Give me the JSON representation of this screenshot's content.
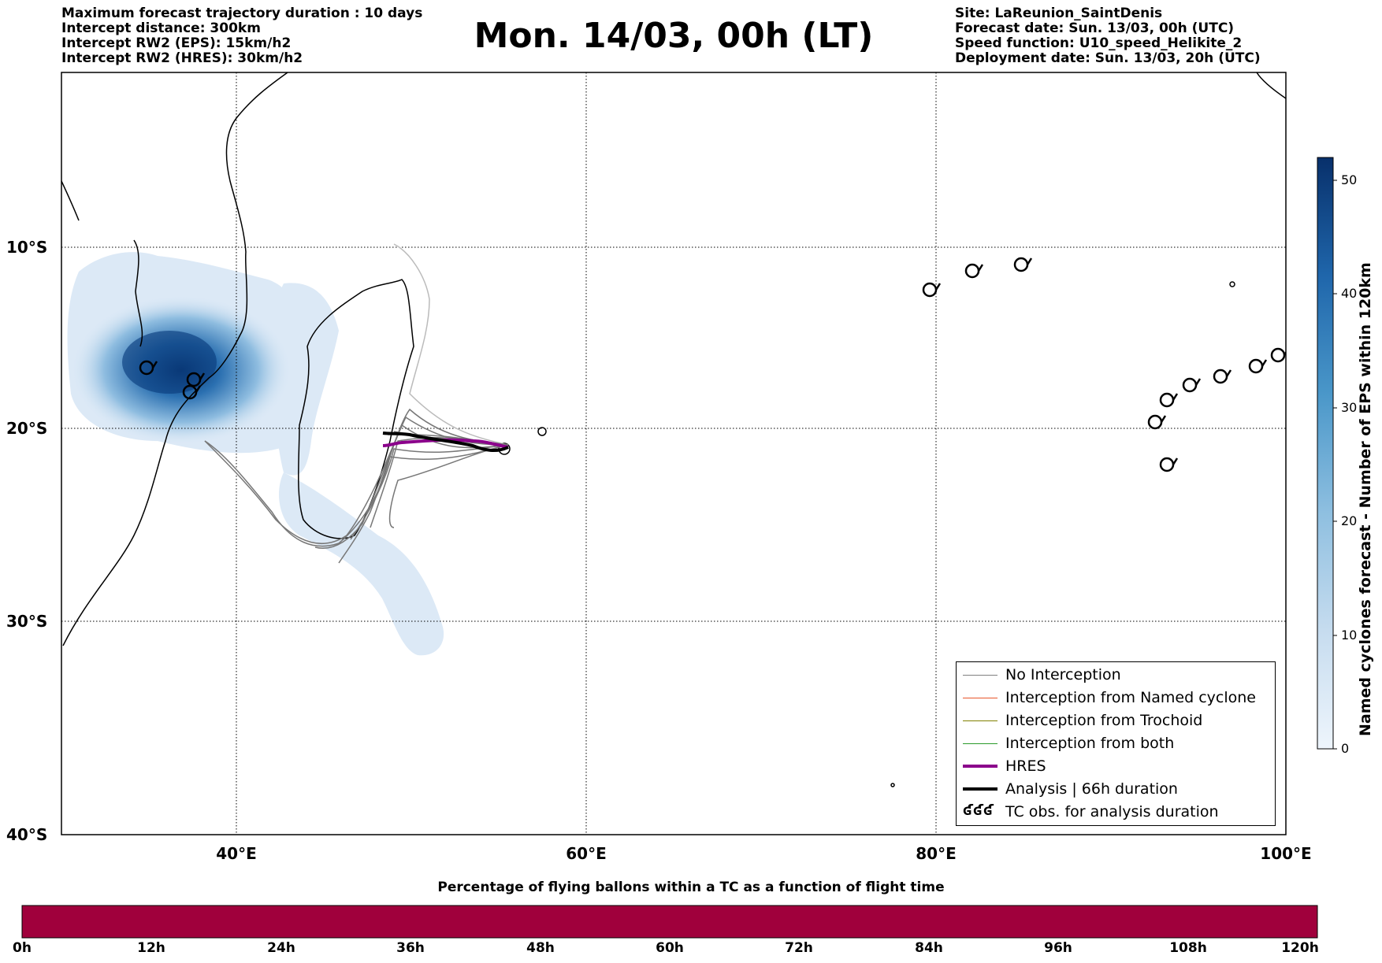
{
  "header_left": [
    "Maximum forecast trajectory duration : 10 days",
    "Intercept distance: 300km",
    "Intercept RW2 (EPS):  15km/h2",
    "Intercept RW2 (HRES): 30km/h2"
  ],
  "title": "Mon. 14/03, 00h (LT)",
  "header_right": [
    "Site: LaReunion_SaintDenis",
    "Forecast date: Sun. 13/03, 00h (UTC)",
    "Speed function: U10_speed_Helikite_2",
    "Deployment date: Sun. 13/03, 20h (UTC)"
  ],
  "map": {
    "lat_labels": [
      "10°S",
      "20°S",
      "30°S",
      "40°S"
    ],
    "lon_labels": [
      "40°E",
      "60°E",
      "80°E",
      "100°E"
    ],
    "lon_range": [
      30,
      100
    ],
    "lat_range": [
      -40,
      -0.2
    ],
    "grid": "dotted",
    "trajectory_colors": {
      "no_interception": "#777777",
      "hres": "#8b008b",
      "analysis": "#000000"
    }
  },
  "legend": {
    "items": [
      {
        "label": "No Interception",
        "color": "#808080",
        "width": 1.5
      },
      {
        "label": "Interception from Named cyclone",
        "color": "#e8552a",
        "width": 1.5
      },
      {
        "label": "Interception from Trochoid",
        "color": "#808000",
        "width": 1.5
      },
      {
        "label": "Interception from both",
        "color": "#2a9a2a",
        "width": 1.5
      },
      {
        "label": "HRES",
        "color": "#8b008b",
        "width": 4
      },
      {
        "label": "Analysis | 66h duration",
        "color": "#000000",
        "width": 4
      },
      {
        "label": "TC obs. for analysis duration",
        "color": "#000000",
        "symbol": "ʛʛʛ"
      }
    ]
  },
  "colorbar_vertical": {
    "label": "Named cyclones forecast - Number of EPS within 120km",
    "ticks": [
      "0",
      "10",
      "20",
      "30",
      "40",
      "50"
    ],
    "range": [
      0,
      52
    ],
    "colors": [
      "#e8f1fb",
      "#0a3a78"
    ]
  },
  "colorbar_horizontal": {
    "title": "Percentage of flying ballons within a TC as a function of flight time",
    "ticks": [
      "0h",
      "12h",
      "24h",
      "36h",
      "48h",
      "60h",
      "72h",
      "84h",
      "96h",
      "108h",
      "120h"
    ],
    "fill_color": "#a0003c"
  }
}
